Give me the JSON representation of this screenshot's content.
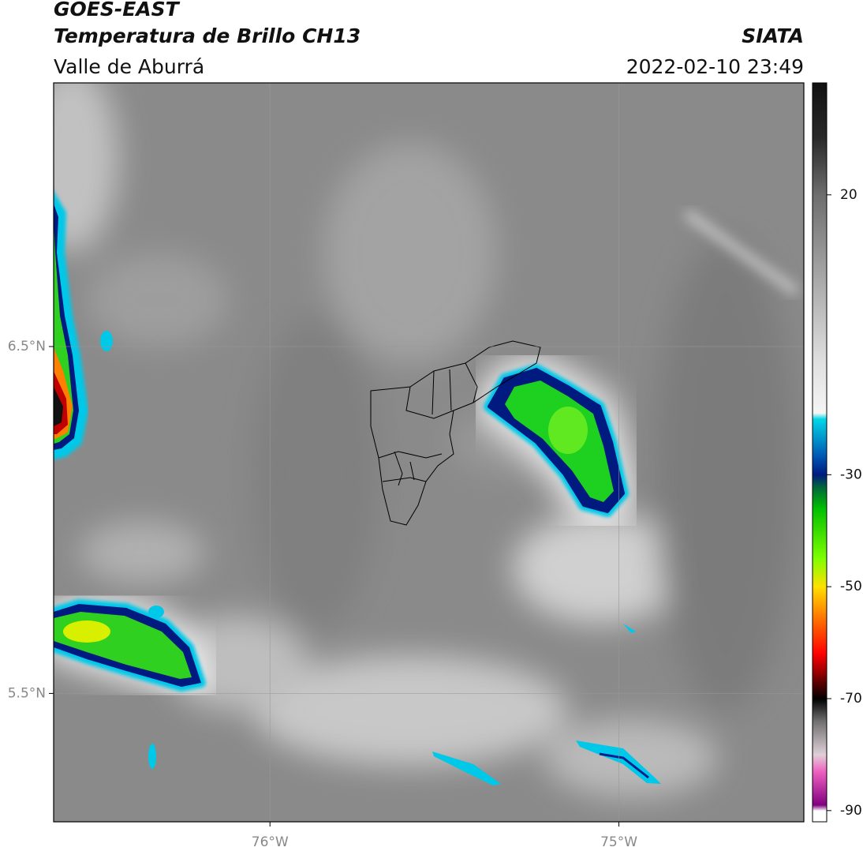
{
  "header": {
    "title": "GOES-EAST",
    "subtitle": "Temperatura de Brillo CH13",
    "region": "Valle de Aburrá",
    "source": "SIATA",
    "datetime": "2022-02-10 23:49"
  },
  "map": {
    "xlim": [
      -76.62,
      -74.47
    ],
    "ylim": [
      5.13,
      7.26
    ],
    "xticks": [
      {
        "value": -76,
        "label": "76°W"
      },
      {
        "value": -75,
        "label": "75°W"
      }
    ],
    "yticks": [
      {
        "value": 6.5,
        "label": "6.5°N"
      },
      {
        "value": 5.5,
        "label": "5.5°N"
      }
    ],
    "grid": true
  },
  "colorbar": {
    "lim": [
      -92,
      40
    ],
    "ticks": [
      20,
      -30,
      -50,
      -70,
      -90
    ],
    "stops": [
      {
        "value": 40,
        "color": "#111111"
      },
      {
        "value": 30,
        "color": "#2a2a2a"
      },
      {
        "value": 20,
        "color": "#6e6e6e"
      },
      {
        "value": 5,
        "color": "#a8a8a8"
      },
      {
        "value": -10,
        "color": "#e0e0e0"
      },
      {
        "value": -19,
        "color": "#f5f5f5"
      },
      {
        "value": -20,
        "color": "#00d8e8"
      },
      {
        "value": -27,
        "color": "#0050b0"
      },
      {
        "value": -30,
        "color": "#001a80"
      },
      {
        "value": -32,
        "color": "#006040"
      },
      {
        "value": -36,
        "color": "#00c000"
      },
      {
        "value": -45,
        "color": "#80ff00"
      },
      {
        "value": -50,
        "color": "#ffe000"
      },
      {
        "value": -55,
        "color": "#ff8000"
      },
      {
        "value": -62,
        "color": "#ff0000"
      },
      {
        "value": -66,
        "color": "#800000"
      },
      {
        "value": -70,
        "color": "#000000"
      },
      {
        "value": -74,
        "color": "#707070"
      },
      {
        "value": -80,
        "color": "#e0d0d8"
      },
      {
        "value": -83,
        "color": "#f060c0"
      },
      {
        "value": -89,
        "color": "#800080"
      },
      {
        "value": -90,
        "color": "#ffffff"
      },
      {
        "value": -92,
        "color": "#ffffff"
      }
    ]
  }
}
